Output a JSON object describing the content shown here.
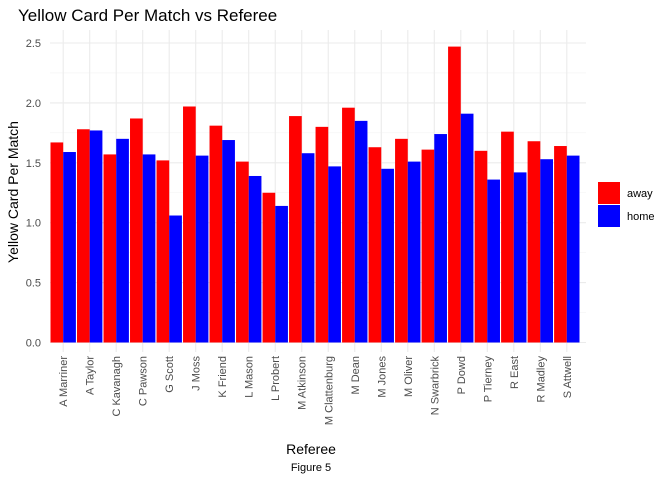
{
  "chart_data": {
    "type": "bar",
    "title": "Yellow Card Per Match vs Referee",
    "xlabel": "Referee",
    "ylabel": "Yellow Card Per Match",
    "caption": "Figure 5",
    "categories": [
      "A Marriner",
      "A Taylor",
      "C Kavanagh",
      "C Pawson",
      "G Scott",
      "J Moss",
      "K Friend",
      "L Mason",
      "L Probert",
      "M Atkinson",
      "M Clattenburg",
      "M Dean",
      "M Jones",
      "M Oliver",
      "N Swarbrick",
      "P Dowd",
      "P Tierney",
      "R East",
      "R Madley",
      "S Attwell"
    ],
    "series": [
      {
        "name": "away",
        "color": "#ff0000",
        "values": [
          1.67,
          1.78,
          1.57,
          1.87,
          1.52,
          1.97,
          1.81,
          1.51,
          1.25,
          1.89,
          1.8,
          1.96,
          1.63,
          1.7,
          1.61,
          2.47,
          1.6,
          1.76,
          1.68,
          1.64
        ]
      },
      {
        "name": "home",
        "color": "#0000ff",
        "values": [
          1.59,
          1.77,
          1.7,
          1.57,
          1.06,
          1.56,
          1.69,
          1.39,
          1.14,
          1.58,
          1.47,
          1.85,
          1.45,
          1.51,
          1.74,
          1.91,
          1.36,
          1.42,
          1.53,
          1.56
        ]
      }
    ],
    "yticks": [
      "0.0",
      "0.5",
      "1.0",
      "1.5",
      "2.0",
      "2.5"
    ],
    "ylim": [
      0,
      2.6
    ],
    "grid": true,
    "legend_position": "right"
  }
}
